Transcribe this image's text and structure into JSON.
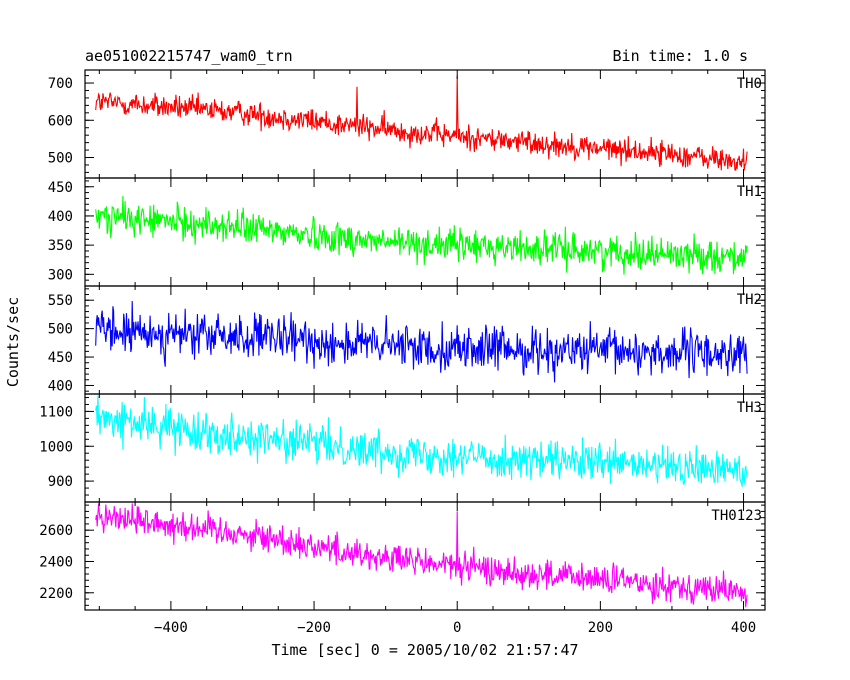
{
  "header": {
    "title": "ae051002215747_wam0_trn",
    "bin_time": "Bin time: 1.0 s"
  },
  "chart_data": {
    "type": "line",
    "xlabel": "Time [sec] 0 = 2005/10/02 21:57:47",
    "ylabel": "Counts/sec",
    "xlim": [
      -520,
      430
    ],
    "x_ticks": [
      -400,
      -200,
      0,
      200,
      400
    ],
    "x_tick_labels": [
      "−400",
      "−200",
      "0",
      "200",
      "400"
    ],
    "x_range": [
      -505,
      405
    ],
    "x_step": 1,
    "panels": [
      {
        "name": "TH0",
        "color": "#ff0000",
        "ylim": [
          445,
          735
        ],
        "y_ticks": [
          500,
          600,
          700
        ],
        "trend": [
          [
            -505,
            650
          ],
          [
            -300,
            620
          ],
          [
            -100,
            575
          ],
          [
            100,
            540
          ],
          [
            300,
            510
          ],
          [
            405,
            485
          ]
        ],
        "noise": 24,
        "spikes": [
          {
            "x": 0,
            "y": 720
          },
          {
            "x": -140,
            "y": 690
          }
        ]
      },
      {
        "name": "TH1",
        "color": "#00ff00",
        "ylim": [
          280,
          465
        ],
        "y_ticks": [
          300,
          350,
          400,
          450
        ],
        "trend": [
          [
            -505,
            400
          ],
          [
            -300,
            380
          ],
          [
            -100,
            355
          ],
          [
            100,
            345
          ],
          [
            300,
            335
          ],
          [
            405,
            330
          ]
        ],
        "noise": 20,
        "spikes": []
      },
      {
        "name": "TH2",
        "color": "#0000ff",
        "ylim": [
          385,
          575
        ],
        "y_ticks": [
          400,
          450,
          500,
          550
        ],
        "trend": [
          [
            -505,
            495
          ],
          [
            -300,
            485
          ],
          [
            -100,
            470
          ],
          [
            100,
            462
          ],
          [
            300,
            458
          ],
          [
            405,
            455
          ]
        ],
        "noise": 28,
        "spikes": []
      },
      {
        "name": "TH3",
        "color": "#00ffff",
        "ylim": [
          840,
          1150
        ],
        "y_ticks": [
          900,
          1000,
          1100
        ],
        "trend": [
          [
            -505,
            1080
          ],
          [
            -300,
            1030
          ],
          [
            -100,
            985
          ],
          [
            100,
            960
          ],
          [
            300,
            940
          ],
          [
            405,
            930
          ]
        ],
        "noise": 40,
        "spikes": []
      },
      {
        "name": "TH0123",
        "color": "#ff00ff",
        "ylim": [
          2090,
          2780
        ],
        "y_ticks": [
          2200,
          2400,
          2600
        ],
        "trend": [
          [
            -505,
            2700
          ],
          [
            -300,
            2580
          ],
          [
            -100,
            2420
          ],
          [
            100,
            2320
          ],
          [
            300,
            2250
          ],
          [
            405,
            2200
          ]
        ],
        "noise": 70,
        "spikes": [
          {
            "x": 0,
            "y": 2720
          }
        ]
      }
    ]
  }
}
